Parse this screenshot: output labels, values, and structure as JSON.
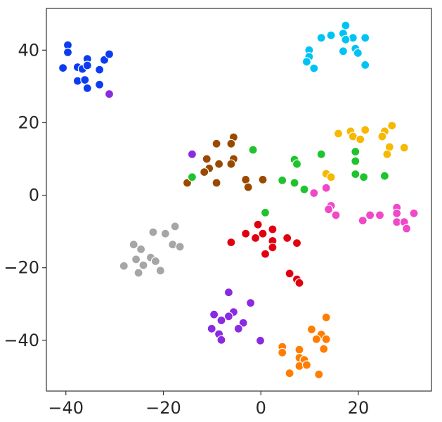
{
  "chart_data": {
    "type": "scatter",
    "title": "",
    "xlabel": "",
    "ylabel": "",
    "xlim": [
      -44,
      35
    ],
    "ylim": [
      -54,
      51.5
    ],
    "xticks": [
      -40,
      -20,
      0,
      20
    ],
    "yticks": [
      40,
      20,
      0,
      -20,
      -40
    ],
    "xtick_labels": [
      "−40",
      "−20",
      "0",
      "20"
    ],
    "ytick_labels": [
      "40",
      "20",
      "0",
      "−20",
      "−40"
    ],
    "grid": false,
    "legend": false,
    "series": [
      {
        "color": "#0b3cf0",
        "points": [
          [
            -39.6,
            41.4
          ],
          [
            -39.6,
            39.4
          ],
          [
            -37.6,
            35.3
          ],
          [
            -40.6,
            35.1
          ],
          [
            -36.6,
            34.8
          ],
          [
            -35.6,
            37.6
          ],
          [
            -35.6,
            35.8
          ],
          [
            -33.1,
            34.6
          ],
          [
            -32.1,
            37.3
          ],
          [
            -31.1,
            38.9
          ],
          [
            -37.6,
            31.5
          ],
          [
            -36.1,
            31.8
          ],
          [
            -35.6,
            29.5
          ],
          [
            -33.1,
            30.5
          ]
        ]
      },
      {
        "color": "#00c3f5",
        "points": [
          [
            17.4,
            46.8
          ],
          [
            16.9,
            44.6
          ],
          [
            14.4,
            44.1
          ],
          [
            12.4,
            43.4
          ],
          [
            18.9,
            43.4
          ],
          [
            21.4,
            43.4
          ],
          [
            17.4,
            42.9
          ],
          [
            19.4,
            40.4
          ],
          [
            19.9,
            39.2
          ],
          [
            16.9,
            39.7
          ],
          [
            9.9,
            40.0
          ],
          [
            9.9,
            38.2
          ],
          [
            9.4,
            36.8
          ],
          [
            10.9,
            35.0
          ],
          [
            21.4,
            35.9
          ]
        ]
      },
      {
        "color": "#f7b800",
        "points": [
          [
            26.9,
            19.2
          ],
          [
            15.9,
            17.0
          ],
          [
            18.4,
            17.6
          ],
          [
            21.4,
            18.0
          ],
          [
            25.4,
            17.6
          ],
          [
            24.9,
            16.2
          ],
          [
            18.9,
            16.2
          ],
          [
            20.4,
            15.4
          ],
          [
            26.4,
            13.3
          ],
          [
            29.4,
            13.1
          ],
          [
            25.9,
            11.3
          ],
          [
            13.4,
            5.9
          ],
          [
            14.4,
            5.0
          ]
        ]
      },
      {
        "color": "#9a4a00",
        "points": [
          [
            -5.6,
            16.0
          ],
          [
            -9.1,
            14.2
          ],
          [
            -6.1,
            14.2
          ],
          [
            -5.6,
            10.0
          ],
          [
            -11.1,
            10.0
          ],
          [
            -8.6,
            8.6
          ],
          [
            -6.1,
            8.6
          ],
          [
            -10.6,
            7.4
          ],
          [
            -11.6,
            6.4
          ],
          [
            -3.1,
            4.3
          ],
          [
            0.4,
            4.3
          ],
          [
            -15.1,
            3.4
          ],
          [
            -9.1,
            3.4
          ],
          [
            -2.6,
            2.2
          ]
        ]
      },
      {
        "color": "#1ec42d",
        "points": [
          [
            -1.6,
            12.5
          ],
          [
            12.4,
            11.3
          ],
          [
            6.9,
            9.8
          ],
          [
            7.4,
            8.6
          ],
          [
            19.4,
            12.0
          ],
          [
            19.4,
            9.4
          ],
          [
            19.4,
            5.8
          ],
          [
            21.1,
            5.0
          ],
          [
            25.4,
            5.3
          ],
          [
            4.4,
            4.1
          ],
          [
            6.9,
            3.4
          ],
          [
            8.9,
            1.6
          ],
          [
            0.9,
            -4.8
          ],
          [
            -14.1,
            5.0
          ]
        ]
      },
      {
        "color": "#8a2be2",
        "points": [
          [
            -14.1,
            11.3
          ],
          [
            -31.1,
            27.9
          ],
          [
            -6.6,
            -26.8
          ],
          [
            -2.1,
            -29.7
          ],
          [
            -5.6,
            -32.2
          ],
          [
            -9.6,
            -32.9
          ],
          [
            -6.6,
            -33.4
          ],
          [
            -8.1,
            -34.5
          ],
          [
            -3.6,
            -35.2
          ],
          [
            -4.6,
            -36.8
          ],
          [
            -10.1,
            -36.8
          ],
          [
            -8.6,
            -38.3
          ],
          [
            -8.1,
            -39.9
          ],
          [
            -0.1,
            -40.1
          ]
        ]
      },
      {
        "color": "#f048c8",
        "points": [
          [
            10.9,
            0.6
          ],
          [
            13.4,
            2.0
          ],
          [
            14.4,
            -2.9
          ],
          [
            13.9,
            -3.9
          ],
          [
            15.4,
            -5.5
          ],
          [
            22.4,
            -5.5
          ],
          [
            24.4,
            -5.5
          ],
          [
            27.9,
            -3.4
          ],
          [
            27.9,
            -5.0
          ],
          [
            31.4,
            -5.0
          ],
          [
            20.9,
            -7.0
          ],
          [
            27.9,
            -7.4
          ],
          [
            29.4,
            -7.4
          ],
          [
            29.9,
            -9.2
          ]
        ]
      },
      {
        "color": "#e00010",
        "points": [
          [
            -0.6,
            -8.1
          ],
          [
            2.4,
            -9.4
          ],
          [
            -3.1,
            -10.6
          ],
          [
            0.4,
            -10.6
          ],
          [
            -1.1,
            -11.8
          ],
          [
            5.4,
            -11.8
          ],
          [
            2.4,
            -12.6
          ],
          [
            -6.1,
            -13.0
          ],
          [
            7.4,
            -13.2
          ],
          [
            2.4,
            -14.4
          ],
          [
            0.9,
            -16.2
          ],
          [
            5.9,
            -21.6
          ],
          [
            7.4,
            -23.2
          ],
          [
            7.9,
            -24.2
          ]
        ]
      },
      {
        "color": "#a6a6a6",
        "points": [
          [
            -17.6,
            -8.6
          ],
          [
            -22.1,
            -10.2
          ],
          [
            -19.6,
            -10.6
          ],
          [
            -26.1,
            -13.6
          ],
          [
            -18.1,
            -13.6
          ],
          [
            -16.6,
            -14.2
          ],
          [
            -24.6,
            -14.9
          ],
          [
            -22.6,
            -17.2
          ],
          [
            -25.6,
            -17.7
          ],
          [
            -21.6,
            -18.2
          ],
          [
            -24.1,
            -19.3
          ],
          [
            -28.1,
            -19.5
          ],
          [
            -20.6,
            -20.8
          ],
          [
            -25.1,
            -21.4
          ]
        ]
      },
      {
        "color": "#ff7d00",
        "points": [
          [
            13.4,
            -33.7
          ],
          [
            10.4,
            -37.0
          ],
          [
            12.4,
            -38.4
          ],
          [
            11.4,
            -39.7
          ],
          [
            13.4,
            -39.7
          ],
          [
            4.4,
            -41.8
          ],
          [
            12.9,
            -42.4
          ],
          [
            7.9,
            -42.6
          ],
          [
            4.4,
            -43.4
          ],
          [
            7.9,
            -44.8
          ],
          [
            8.9,
            -45.4
          ],
          [
            7.9,
            -47.1
          ],
          [
            9.4,
            -46.8
          ],
          [
            5.9,
            -49.1
          ],
          [
            11.9,
            -49.4
          ]
        ]
      }
    ]
  }
}
